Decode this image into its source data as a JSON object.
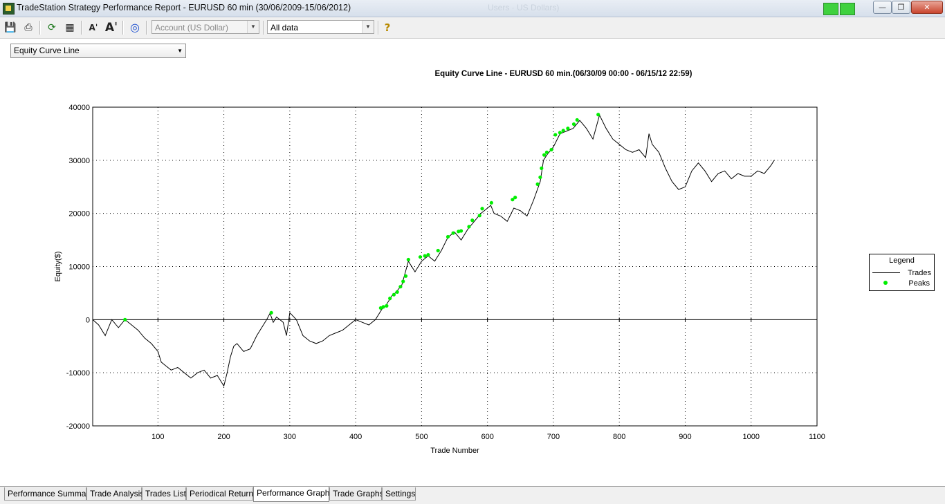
{
  "window": {
    "title": "TradeStation Strategy Performance Report - EURUSD 60 min (30/06/2009-15/06/2012)",
    "ghost_title": "Users · US Dollars)"
  },
  "toolbar": {
    "icons": [
      "save-icon",
      "print-icon",
      "refresh-icon",
      "properties-icon",
      "decrease-font-icon",
      "increase-font-icon",
      "target-icon",
      "help-icon"
    ],
    "account_value": "Account (US Dollar)",
    "range_value": "All data"
  },
  "view_select": {
    "value": "Equity Curve Line"
  },
  "chart_data": {
    "type": "line",
    "title": "Equity Curve Line - EURUSD 60 min.(06/30/09 00:00 - 06/15/12 22:59)",
    "xlabel": "Trade Number",
    "ylabel": "Equity($)",
    "xlim": [
      1,
      1100
    ],
    "ylim": [
      -20000,
      40000
    ],
    "x_ticks": [
      "100",
      "200",
      "300",
      "400",
      "500",
      "600",
      "700",
      "800",
      "900",
      "1000",
      "1100"
    ],
    "y_ticks": [
      "40000",
      "30000",
      "20000",
      "10000",
      "0",
      "-10000",
      "-20000"
    ],
    "grid": true,
    "legend": {
      "title": "Legend",
      "position": "right",
      "entries": [
        "Trades",
        "Peaks"
      ]
    },
    "series": [
      {
        "name": "Trades",
        "color": "#000000",
        "x": [
          1,
          10,
          20,
          30,
          40,
          50,
          60,
          70,
          80,
          90,
          100,
          105,
          110,
          120,
          130,
          140,
          150,
          160,
          170,
          180,
          190,
          200,
          205,
          210,
          215,
          220,
          230,
          240,
          250,
          260,
          265,
          270,
          275,
          280,
          290,
          295,
          300,
          310,
          320,
          330,
          340,
          350,
          360,
          370,
          380,
          390,
          400,
          410,
          420,
          430,
          440,
          445,
          450,
          455,
          460,
          470,
          480,
          490,
          500,
          510,
          520,
          530,
          540,
          550,
          560,
          570,
          580,
          590,
          600,
          605,
          610,
          620,
          630,
          640,
          650,
          660,
          670,
          680,
          685,
          690,
          700,
          710,
          720,
          730,
          740,
          750,
          760,
          770,
          780,
          790,
          800,
          810,
          820,
          830,
          840,
          845,
          850,
          860,
          870,
          880,
          890,
          900,
          910,
          920,
          930,
          940,
          950,
          960,
          970,
          980,
          990,
          1000,
          1010,
          1020,
          1030,
          1035
        ],
        "y": [
          0,
          -1000,
          -3000,
          0,
          -1500,
          0,
          -1000,
          -2000,
          -3500,
          -4500,
          -6000,
          -8000,
          -8500,
          -9500,
          -9000,
          -10000,
          -11000,
          -10000,
          -9500,
          -11000,
          -10500,
          -12500,
          -10000,
          -7000,
          -5000,
          -4500,
          -6000,
          -5500,
          -3000,
          -1000,
          0,
          1200,
          -500,
          500,
          -500,
          -3000,
          1300,
          0,
          -3000,
          -4000,
          -4500,
          -4000,
          -3000,
          -2500,
          -2000,
          -1000,
          0,
          -500,
          -1000,
          0,
          2000,
          2500,
          3500,
          4500,
          5000,
          6500,
          11000,
          9000,
          11000,
          12000,
          11000,
          13000,
          15500,
          16500,
          15000,
          17000,
          18500,
          20000,
          21000,
          21500,
          20000,
          19500,
          18500,
          21000,
          20500,
          19500,
          22500,
          26000,
          30000,
          31000,
          32500,
          35000,
          35500,
          36000,
          37500,
          36000,
          34000,
          38500,
          36000,
          34000,
          33000,
          32000,
          31500,
          32000,
          30500,
          35000,
          33000,
          31500,
          28500,
          26000,
          24500,
          25000,
          28000,
          29500,
          28000,
          26000,
          27500,
          28000,
          26500,
          27500,
          27000,
          27000,
          28000,
          27500,
          29000,
          30000
        ]
      },
      {
        "name": "Peaks",
        "color": "#00ee00",
        "x": [
          50,
          272,
          438,
          442,
          447,
          452,
          458,
          463,
          468,
          472,
          476,
          480,
          498,
          505,
          510,
          525,
          540,
          548,
          556,
          560,
          572,
          577,
          588,
          592,
          606,
          638,
          642,
          676,
          680,
          682,
          686,
          690,
          697,
          703,
          710,
          715,
          722,
          731,
          736,
          768
        ],
        "y": [
          0,
          1300,
          2200,
          2400,
          2600,
          4000,
          4700,
          5200,
          6200,
          7200,
          8200,
          11300,
          11800,
          12000,
          12200,
          13000,
          15600,
          16300,
          16600,
          16700,
          17500,
          18700,
          19600,
          20900,
          22000,
          22600,
          23000,
          25500,
          26800,
          28500,
          31000,
          31500,
          32000,
          34800,
          35200,
          35600,
          36000,
          36800,
          37600,
          38600
        ]
      }
    ]
  },
  "tabs": [
    {
      "label": "Performance Summary"
    },
    {
      "label": "Trade Analysis"
    },
    {
      "label": "Trades List"
    },
    {
      "label": "Periodical Returns"
    },
    {
      "label": "Performance Graphs"
    },
    {
      "label": "Trade Graphs"
    },
    {
      "label": "Settings"
    }
  ],
  "active_tab": "Performance Graphs"
}
